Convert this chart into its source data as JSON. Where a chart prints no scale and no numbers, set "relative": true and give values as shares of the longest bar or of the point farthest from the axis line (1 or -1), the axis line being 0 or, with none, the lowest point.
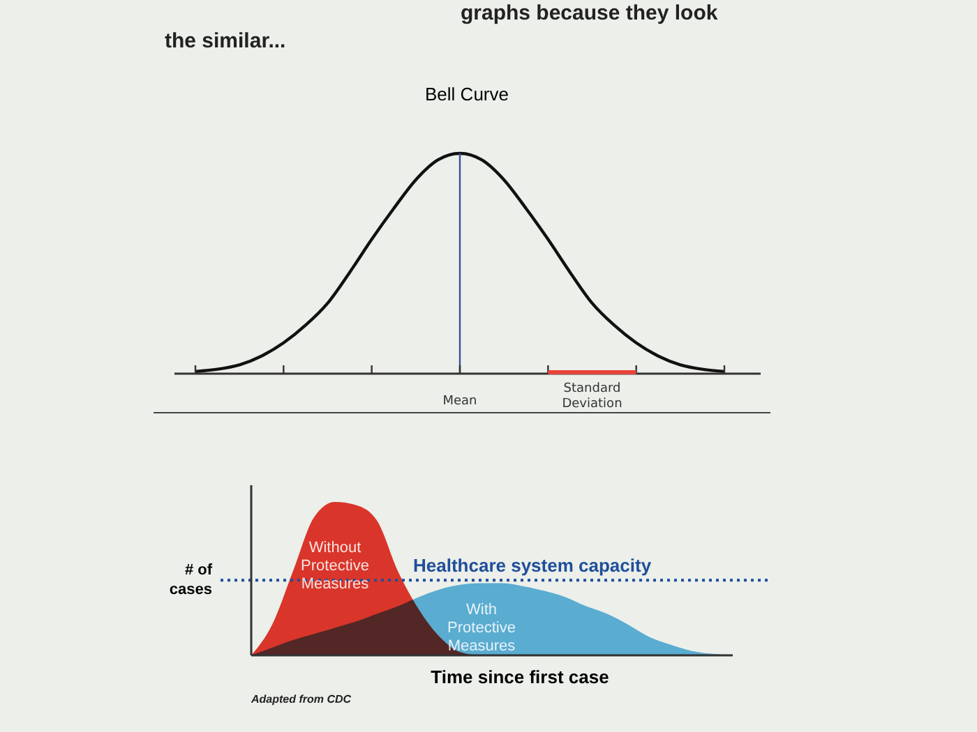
{
  "chart_data": [
    {
      "type": "line",
      "title": "Bell Curve",
      "relative": true,
      "annotations": [
        "graphs because they look",
        "the similar...",
        {
          "text": "Standard Deviation"
        }
      ],
      "categories": [
        null,
        null,
        null,
        null,
        null,
        null,
        null,
        null,
        null,
        null,
        null,
        null,
        null,
        null,
        null,
        null,
        null,
        null,
        null,
        null,
        null,
        null,
        null,
        null,
        null
      ],
      "series": [
        {
          "color": "#111111",
          "values": [
            0.01,
            0.02,
            0.04,
            0.08,
            0.14,
            0.22,
            0.32,
            0.46,
            0.61,
            0.75,
            0.88,
            0.97,
            1,
            0.97,
            0.88,
            0.75,
            0.61,
            0.46,
            0.32,
            0.22,
            0.14,
            0.08,
            0.04,
            0.02,
            0.01
          ]
        }
      ],
      "ref_lines": [
        {
          "axis": "x",
          "label": "Mean",
          "color": "#3a4f9a"
        }
      ]
    },
    {
      "type": "area",
      "relative": true,
      "xlabel": "Time since first case",
      "ylabel": "# of cases",
      "annotations": [
        "Adapted from CDC"
      ],
      "categories": [
        null,
        null,
        null,
        null,
        null,
        null,
        null,
        null,
        null,
        null,
        null,
        null,
        null,
        null,
        null,
        null,
        null,
        null,
        null,
        null,
        null,
        null,
        null,
        null
      ],
      "series": [
        {
          "name": "Without Protective Measures",
          "color": "#d9352a",
          "values": [
            0,
            0.2,
            0.55,
            0.9,
            1,
            0.98,
            0.88,
            0.55,
            0.3,
            0.12,
            0.02,
            0,
            0,
            0,
            0,
            0,
            0,
            0,
            0,
            0,
            0,
            0,
            0,
            0
          ]
        },
        {
          "name": "With Protective Measures",
          "color": "#3aa6dc",
          "values": [
            0,
            0.05,
            0.1,
            0.14,
            0.18,
            0.22,
            0.27,
            0.32,
            0.38,
            0.43,
            0.46,
            0.47,
            0.47,
            0.45,
            0.42,
            0.38,
            0.32,
            0.27,
            0.2,
            0.12,
            0.07,
            0.03,
            0.01,
            0
          ]
        }
      ],
      "ref_lines": [
        {
          "axis": "y",
          "value": 0.49,
          "label": "Healthcare system capacity",
          "color": "#1f4f9a",
          "line_style": "dotted"
        }
      ]
    }
  ]
}
